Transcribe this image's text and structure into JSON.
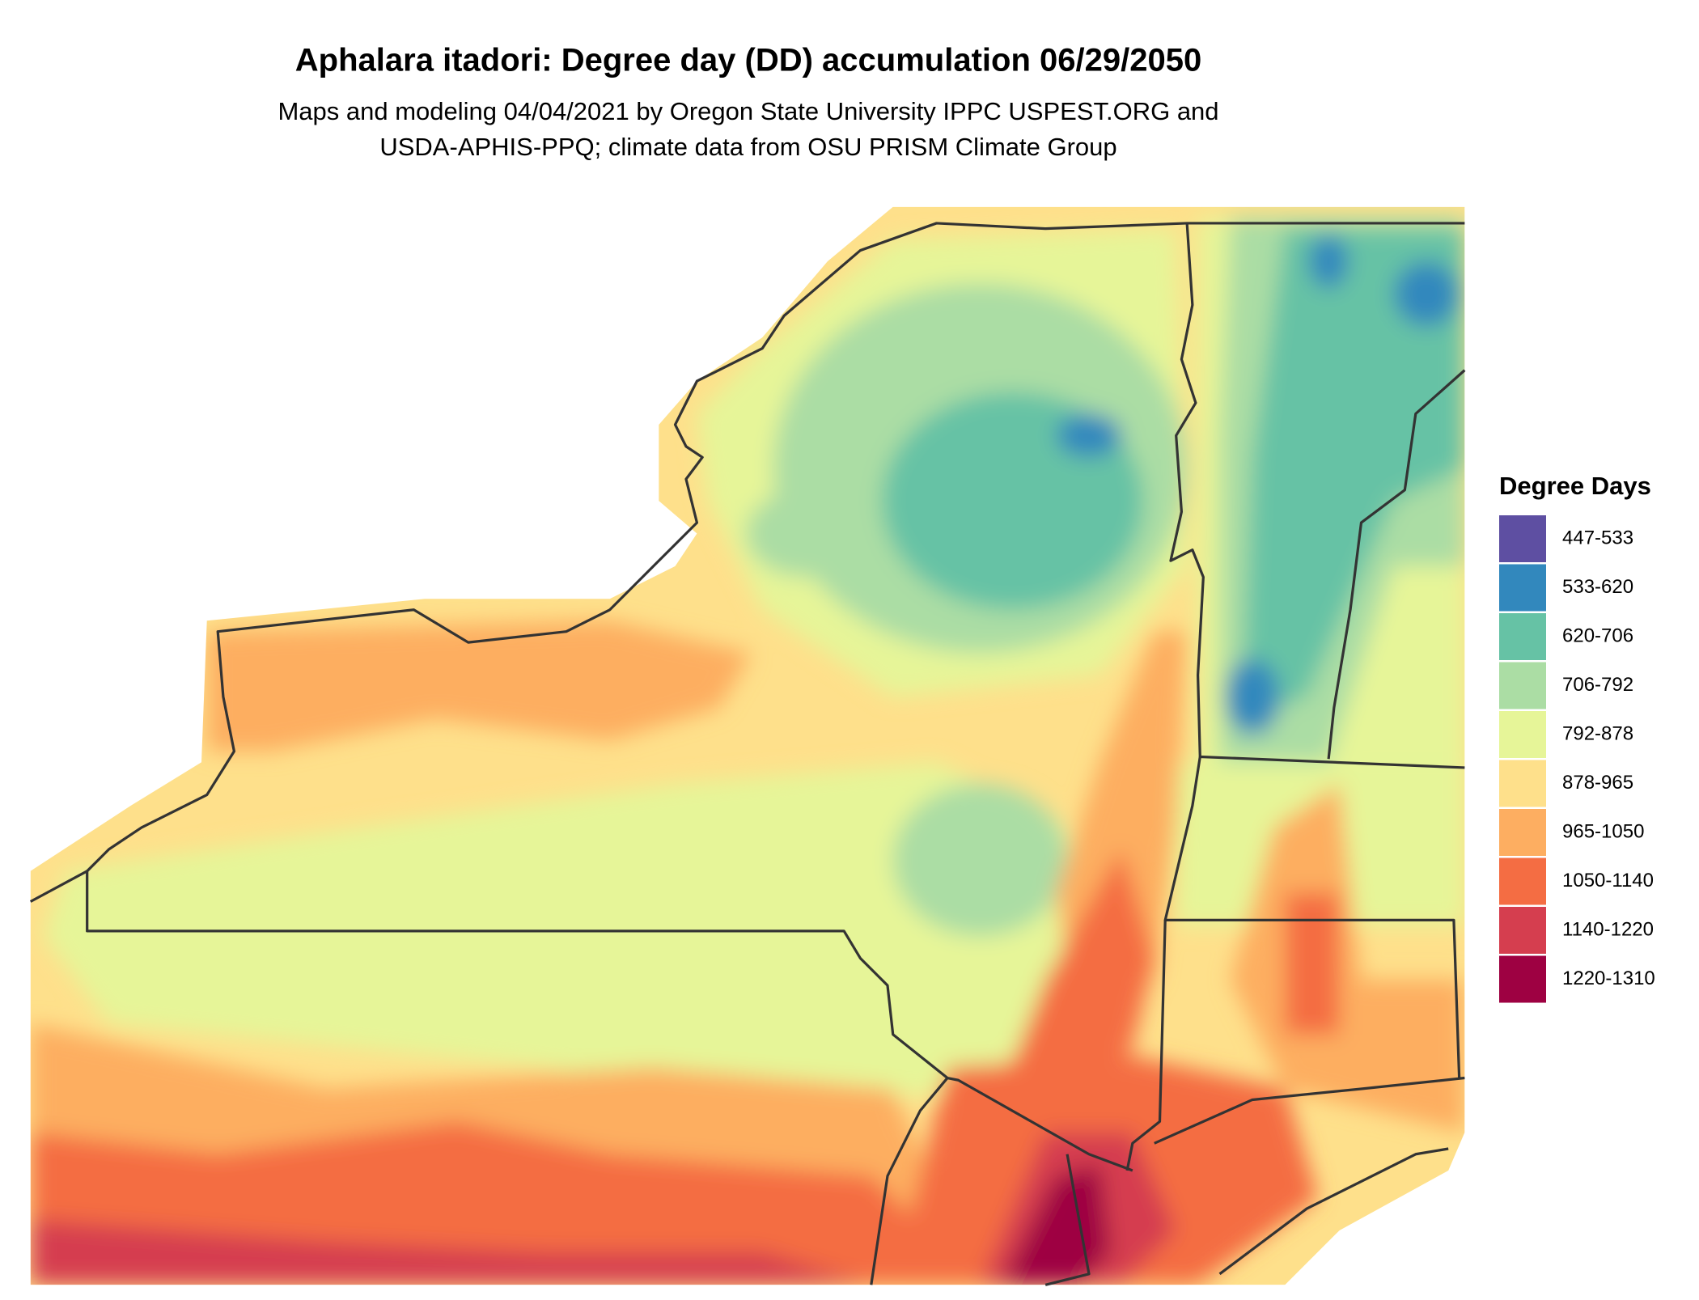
{
  "title": "Aphalara itadori: Degree day (DD) accumulation 06/29/2050",
  "subtitle": [
    "Maps and modeling 04/04/2021 by Oregon State University IPPC USPEST.ORG and",
    "USDA-APHIS-PPQ; climate data from OSU PRISM Climate Group"
  ],
  "legend": {
    "title": "Degree Days",
    "items": [
      {
        "label": "447-533",
        "color": "#5e4fa2"
      },
      {
        "label": "533-620",
        "color": "#3288bd"
      },
      {
        "label": "620-706",
        "color": "#66c2a5"
      },
      {
        "label": "706-792",
        "color": "#abdda4"
      },
      {
        "label": "792-878",
        "color": "#e6f598"
      },
      {
        "label": "878-965",
        "color": "#fee08b"
      },
      {
        "label": "965-1050",
        "color": "#fdae61"
      },
      {
        "label": "1050-1140",
        "color": "#f46d43"
      },
      {
        "label": "1140-1220",
        "color": "#d53e4f"
      },
      {
        "label": "1220-1310",
        "color": "#9e0142"
      }
    ]
  }
}
